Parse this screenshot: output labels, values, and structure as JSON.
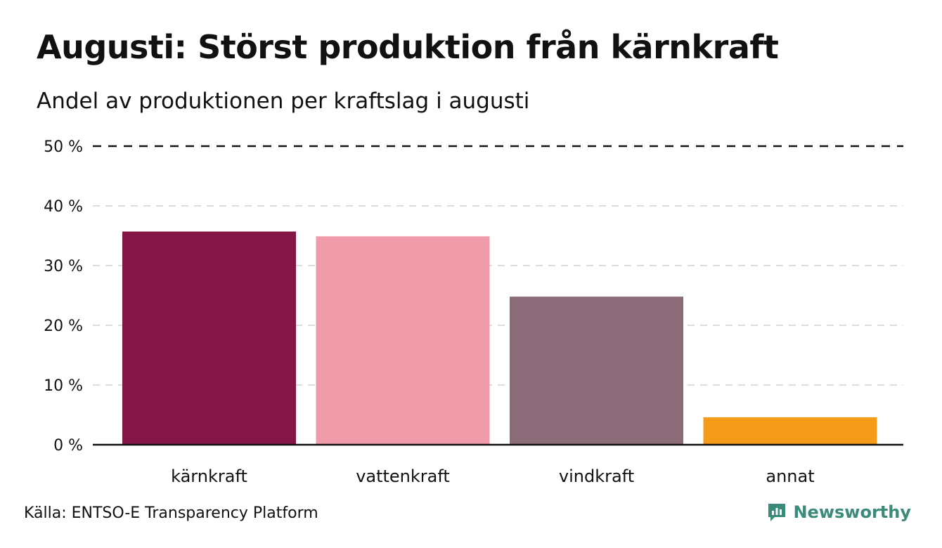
{
  "header": {
    "title": "Augusti: Störst produktion från kärnkraft",
    "subtitle": "Andel av produktionen per kraftslag i augusti"
  },
  "footer": {
    "source": "Källa: ENTSO-E Transparency Platform",
    "brand": "Newsworthy",
    "brand_icon": "newsworthy-logo-icon",
    "brand_color": "#3b8a7a"
  },
  "chart_data": {
    "type": "bar",
    "title": "Augusti: Störst produktion från kärnkraft",
    "subtitle": "Andel av produktionen per kraftslag i augusti",
    "categories": [
      "kärnkraft",
      "vattenkraft",
      "vindkraft",
      "annat"
    ],
    "values": [
      35.7,
      34.9,
      24.8,
      4.6
    ],
    "colors": [
      "#841547",
      "#f09ba9",
      "#8a6b77",
      "#f59b1a"
    ],
    "unit": "%",
    "ylim": [
      0,
      50
    ],
    "yticks": [
      0,
      10,
      20,
      30,
      40,
      50
    ],
    "ytick_labels": [
      "0 %",
      "10 %",
      "20 %",
      "30 %",
      "40 %",
      "50 %"
    ],
    "grid": true,
    "xlabel": "",
    "ylabel": ""
  }
}
